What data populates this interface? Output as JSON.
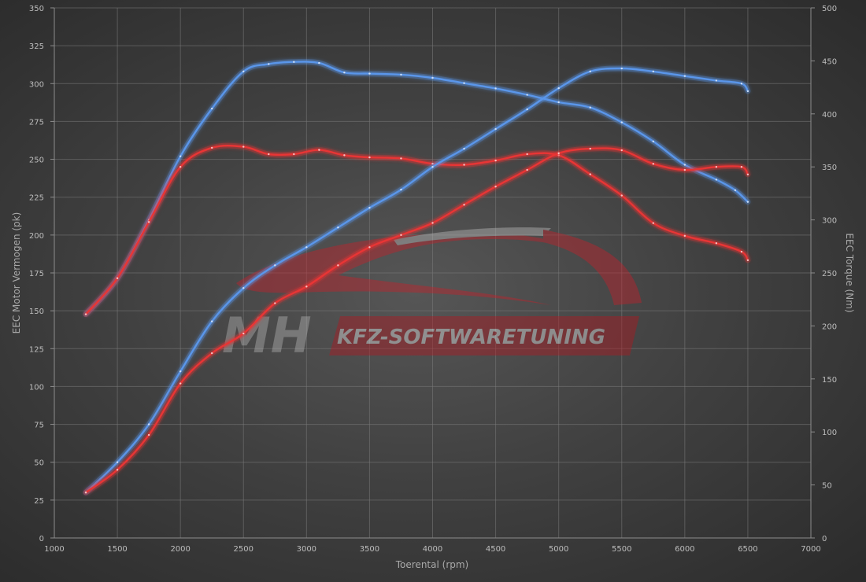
{
  "chart_data": {
    "type": "line",
    "title": "",
    "xlabel": "Toerental (rpm)",
    "ylabel_left": "EEC Motor Vermogen (pk)",
    "ylabel_right": "EEC Torque (Nm)",
    "xlim": [
      1000,
      7000
    ],
    "ylim_left": [
      0,
      350
    ],
    "ylim_right": [
      0,
      500
    ],
    "x_ticks": [
      1000,
      1500,
      2000,
      2500,
      3000,
      3500,
      4000,
      4500,
      5000,
      5500,
      6000,
      6500,
      7000
    ],
    "y_left_ticks": [
      0,
      25,
      50,
      75,
      100,
      125,
      150,
      175,
      200,
      225,
      250,
      275,
      300,
      325,
      350
    ],
    "y_right_ticks": [
      0,
      50,
      100,
      150,
      200,
      250,
      300,
      350,
      400,
      450,
      500
    ],
    "grid": true,
    "legend": "none",
    "colors": {
      "tuned": "#5a96ea",
      "stock": "#e83434"
    },
    "series": [
      {
        "key": "torque_tuned",
        "axis": "right",
        "color": "tuned",
        "x": [
          1250,
          1500,
          1750,
          2000,
          2250,
          2500,
          2700,
          2900,
          3100,
          3300,
          3500,
          3750,
          4000,
          4250,
          4500,
          4750,
          5000,
          5250,
          5500,
          5750,
          6000,
          6250,
          6400,
          6500
        ],
        "y": [
          211,
          245,
          300,
          360,
          405,
          440,
          447,
          449,
          448,
          439,
          438,
          437,
          434,
          429,
          424,
          418,
          411,
          406,
          392,
          374,
          352,
          338,
          328,
          317
        ]
      },
      {
        "key": "torque_stock",
        "axis": "right",
        "color": "stock",
        "x": [
          1250,
          1500,
          1750,
          2000,
          2250,
          2500,
          2700,
          2900,
          3100,
          3300,
          3500,
          3750,
          4000,
          4250,
          4500,
          4750,
          5000,
          5250,
          5500,
          5750,
          6000,
          6250,
          6450,
          6500
        ],
        "y": [
          211,
          245,
          298,
          350,
          368,
          369,
          362,
          362,
          366,
          361,
          359,
          358,
          353,
          352,
          356,
          362,
          361,
          343,
          323,
          297,
          285,
          278,
          270,
          262
        ]
      },
      {
        "key": "power_tuned",
        "axis": "left",
        "color": "tuned",
        "x": [
          1250,
          1500,
          1750,
          2000,
          2250,
          2500,
          2750,
          3000,
          3250,
          3500,
          3750,
          4000,
          4250,
          4500,
          4750,
          5000,
          5250,
          5500,
          5750,
          6000,
          6250,
          6450,
          6500
        ],
        "y": [
          30,
          50,
          75,
          110,
          143,
          165,
          180,
          192,
          205,
          218,
          230,
          245,
          257,
          270,
          283,
          297,
          308,
          310,
          308,
          305,
          302,
          300,
          295
        ]
      },
      {
        "key": "power_stock",
        "axis": "left",
        "color": "stock",
        "x": [
          1250,
          1500,
          1750,
          2000,
          2250,
          2500,
          2750,
          3000,
          3250,
          3500,
          3750,
          4000,
          4250,
          4500,
          4750,
          5000,
          5250,
          5500,
          5750,
          6000,
          6250,
          6450,
          6500
        ],
        "y": [
          30,
          45,
          68,
          102,
          122,
          135,
          155,
          166,
          180,
          192,
          200,
          208,
          220,
          232,
          243,
          254,
          257,
          256,
          247,
          243,
          245,
          245,
          240
        ]
      }
    ]
  },
  "watermark": {
    "brand": "MH",
    "text": "KFZ-SOFTWARETUNING"
  }
}
